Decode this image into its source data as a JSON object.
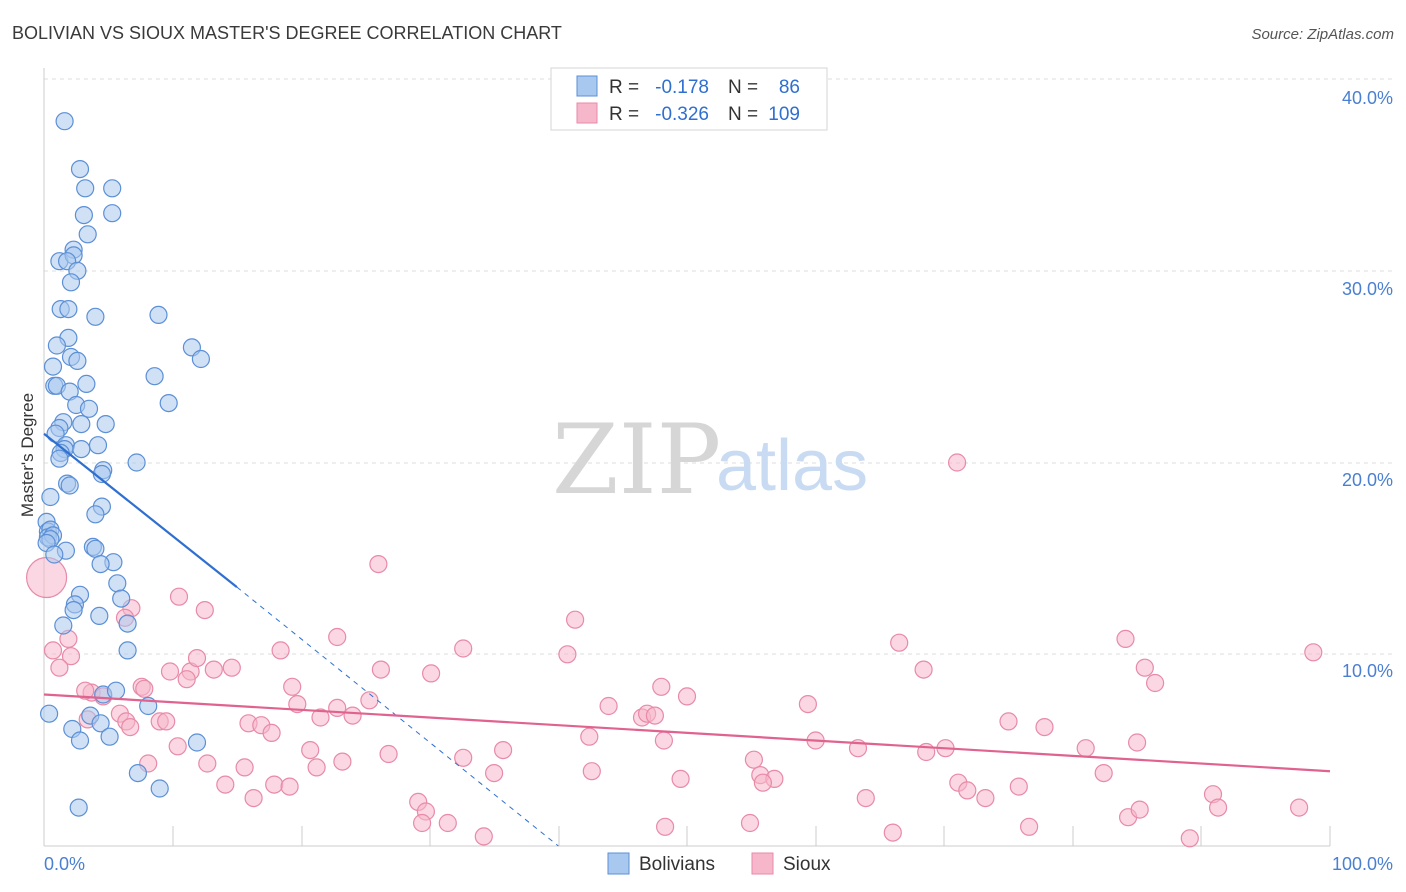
{
  "header": {
    "title": "BOLIVIAN VS SIOUX MASTER'S DEGREE CORRELATION CHART",
    "source": "Source: ZipAtlas.com"
  },
  "watermark": {
    "zip": "ZIP",
    "atlas": "atlas"
  },
  "colors": {
    "blue_fill": "#a9c8ef",
    "blue_stroke": "#5b8fd6",
    "blue_line": "#2f6fd0",
    "pink_fill": "#f6b7cb",
    "pink_stroke": "#e88aa8",
    "pink_line": "#e0628f",
    "grid": "#dddddd",
    "axis_text": "#4a7fd1"
  },
  "legend": {
    "rows": [
      {
        "r_label": "R =",
        "r_value": "-0.178",
        "n_label": "N =",
        "n_value": "86"
      },
      {
        "r_label": "R =",
        "r_value": "-0.326",
        "n_label": "N =",
        "n_value": "109"
      }
    ]
  },
  "bottom_legend": {
    "blue_label": "Bolivians",
    "pink_label": "Sioux"
  },
  "chart_data": {
    "type": "scatter",
    "title": "BOLIVIAN VS SIOUX MASTER'S DEGREE CORRELATION CHART",
    "xlabel": "",
    "ylabel": "Master's Degree",
    "xlim": [
      0,
      100
    ],
    "ylim": [
      0,
      40
    ],
    "x_tick_labels": [
      "0.0%",
      "100.0%"
    ],
    "y_ticks": [
      10,
      20,
      30,
      40
    ],
    "y_tick_labels": [
      "10.0%",
      "20.0%",
      "30.0%",
      "40.0%"
    ],
    "grid": true,
    "series": [
      {
        "name": "Bolivians",
        "R": -0.178,
        "N": 86,
        "trend": {
          "x1": 0,
          "y1": 21.5,
          "x2": 15,
          "y2": 13.5,
          "dashed_to_x": 40,
          "dashed_to_y": 0
        },
        "points": [
          [
            1.6,
            37.8
          ],
          [
            2.8,
            35.3
          ],
          [
            3.2,
            34.3
          ],
          [
            5.3,
            34.3
          ],
          [
            3.1,
            32.9
          ],
          [
            5.3,
            33.0
          ],
          [
            3.4,
            31.9
          ],
          [
            2.3,
            31.1
          ],
          [
            1.2,
            30.5
          ],
          [
            2.3,
            30.8
          ],
          [
            1.8,
            30.5
          ],
          [
            2.6,
            30.0
          ],
          [
            2.1,
            29.4
          ],
          [
            1.3,
            28.0
          ],
          [
            1.9,
            28.0
          ],
          [
            4.0,
            27.6
          ],
          [
            8.9,
            27.7
          ],
          [
            1.9,
            26.5
          ],
          [
            1.0,
            26.1
          ],
          [
            11.5,
            26.0
          ],
          [
            12.2,
            25.4
          ],
          [
            2.1,
            25.5
          ],
          [
            2.6,
            25.3
          ],
          [
            0.7,
            25.0
          ],
          [
            8.6,
            24.5
          ],
          [
            0.8,
            24.0
          ],
          [
            1.0,
            24.0
          ],
          [
            3.3,
            24.1
          ],
          [
            2.0,
            23.7
          ],
          [
            9.7,
            23.1
          ],
          [
            2.5,
            23.0
          ],
          [
            3.5,
            22.8
          ],
          [
            1.5,
            22.1
          ],
          [
            2.9,
            22.0
          ],
          [
            4.8,
            22.0
          ],
          [
            1.2,
            21.8
          ],
          [
            0.9,
            21.5
          ],
          [
            1.7,
            20.9
          ],
          [
            4.2,
            20.9
          ],
          [
            1.6,
            20.7
          ],
          [
            1.3,
            20.5
          ],
          [
            2.9,
            20.7
          ],
          [
            1.2,
            20.2
          ],
          [
            7.2,
            20.0
          ],
          [
            4.6,
            19.6
          ],
          [
            4.5,
            19.4
          ],
          [
            1.8,
            18.9
          ],
          [
            2.0,
            18.8
          ],
          [
            0.5,
            18.2
          ],
          [
            4.5,
            17.7
          ],
          [
            4.0,
            17.3
          ],
          [
            0.2,
            16.9
          ],
          [
            0.3,
            16.4
          ],
          [
            0.5,
            16.5
          ],
          [
            0.3,
            16.1
          ],
          [
            0.7,
            16.2
          ],
          [
            0.5,
            16.0
          ],
          [
            0.2,
            15.8
          ],
          [
            3.8,
            15.6
          ],
          [
            4.0,
            15.5
          ],
          [
            1.7,
            15.4
          ],
          [
            0.8,
            15.2
          ],
          [
            5.4,
            14.8
          ],
          [
            4.4,
            14.7
          ],
          [
            5.7,
            13.7
          ],
          [
            2.8,
            13.1
          ],
          [
            6.0,
            12.9
          ],
          [
            2.4,
            12.6
          ],
          [
            2.3,
            12.3
          ],
          [
            4.3,
            12.0
          ],
          [
            1.5,
            11.5
          ],
          [
            6.5,
            11.6
          ],
          [
            6.5,
            10.2
          ],
          [
            4.6,
            7.9
          ],
          [
            8.1,
            7.3
          ],
          [
            3.6,
            6.8
          ],
          [
            2.2,
            6.1
          ],
          [
            4.4,
            6.4
          ],
          [
            5.1,
            5.7
          ],
          [
            2.8,
            5.5
          ],
          [
            11.9,
            5.4
          ],
          [
            7.3,
            3.8
          ],
          [
            9.0,
            3.0
          ],
          [
            2.7,
            2.0
          ],
          [
            0.4,
            6.9
          ],
          [
            5.6,
            8.1
          ]
        ]
      },
      {
        "name": "Sioux",
        "R": -0.326,
        "N": 109,
        "trend": {
          "x1": 0,
          "y1": 7.9,
          "x2": 100,
          "y2": 3.9
        },
        "points": [
          [
            0.2,
            14.0
          ],
          [
            1.9,
            10.8
          ],
          [
            0.7,
            10.2
          ],
          [
            2.1,
            9.9
          ],
          [
            1.2,
            9.3
          ],
          [
            3.7,
            8.0
          ],
          [
            3.2,
            8.1
          ],
          [
            4.6,
            7.8
          ],
          [
            7.6,
            8.3
          ],
          [
            7.8,
            8.2
          ],
          [
            5.9,
            6.9
          ],
          [
            3.4,
            6.6
          ],
          [
            6.4,
            6.5
          ],
          [
            6.7,
            6.2
          ],
          [
            9.0,
            6.5
          ],
          [
            9.5,
            6.5
          ],
          [
            10.4,
            5.2
          ],
          [
            8.1,
            4.3
          ],
          [
            12.7,
            4.3
          ],
          [
            14.1,
            3.2
          ],
          [
            15.6,
            4.1
          ],
          [
            16.3,
            2.5
          ],
          [
            17.9,
            3.2
          ],
          [
            19.1,
            3.1
          ],
          [
            10.5,
            13.0
          ],
          [
            12.5,
            12.3
          ],
          [
            6.8,
            12.4
          ],
          [
            6.3,
            11.9
          ],
          [
            9.8,
            9.1
          ],
          [
            11.4,
            9.1
          ],
          [
            11.9,
            9.8
          ],
          [
            13.2,
            9.2
          ],
          [
            14.6,
            9.3
          ],
          [
            15.9,
            6.4
          ],
          [
            16.9,
            6.3
          ],
          [
            17.7,
            5.9
          ],
          [
            11.1,
            8.7
          ],
          [
            18.4,
            10.2
          ],
          [
            19.3,
            8.3
          ],
          [
            19.7,
            7.4
          ],
          [
            21.5,
            6.7
          ],
          [
            22.8,
            7.2
          ],
          [
            25.3,
            7.6
          ],
          [
            24.0,
            6.8
          ],
          [
            20.7,
            5.0
          ],
          [
            21.2,
            4.1
          ],
          [
            23.2,
            4.4
          ],
          [
            26.8,
            4.8
          ],
          [
            29.1,
            2.3
          ],
          [
            29.7,
            1.8
          ],
          [
            29.4,
            1.2
          ],
          [
            31.4,
            1.2
          ],
          [
            30.1,
            9.0
          ],
          [
            26.2,
            9.2
          ],
          [
            22.8,
            10.9
          ],
          [
            26.0,
            14.7
          ],
          [
            32.6,
            4.6
          ],
          [
            34.2,
            0.5
          ],
          [
            35.0,
            3.8
          ],
          [
            35.7,
            5.0
          ],
          [
            32.6,
            10.3
          ],
          [
            40.7,
            10.0
          ],
          [
            41.3,
            11.8
          ],
          [
            42.6,
            3.9
          ],
          [
            42.4,
            5.7
          ],
          [
            43.9,
            7.3
          ],
          [
            46.5,
            6.7
          ],
          [
            46.9,
            6.9
          ],
          [
            47.5,
            6.8
          ],
          [
            48.2,
            5.5
          ],
          [
            48.3,
            1.0
          ],
          [
            48.0,
            8.3
          ],
          [
            50.0,
            7.8
          ],
          [
            54.9,
            1.2
          ],
          [
            49.5,
            3.5
          ],
          [
            55.2,
            4.5
          ],
          [
            55.7,
            3.7
          ],
          [
            56.8,
            3.5
          ],
          [
            55.9,
            3.3
          ],
          [
            59.4,
            7.4
          ],
          [
            60.0,
            5.5
          ],
          [
            63.3,
            5.1
          ],
          [
            63.9,
            2.5
          ],
          [
            66.0,
            0.7
          ],
          [
            68.6,
            4.9
          ],
          [
            70.1,
            5.1
          ],
          [
            66.5,
            10.6
          ],
          [
            68.4,
            9.2
          ],
          [
            71.1,
            3.3
          ],
          [
            71.8,
            2.9
          ],
          [
            73.2,
            2.5
          ],
          [
            75.0,
            6.5
          ],
          [
            75.8,
            3.1
          ],
          [
            76.6,
            1.0
          ],
          [
            77.8,
            6.2
          ],
          [
            84.1,
            10.8
          ],
          [
            85.6,
            9.3
          ],
          [
            86.4,
            8.5
          ],
          [
            81.0,
            5.1
          ],
          [
            82.4,
            3.8
          ],
          [
            85.0,
            5.4
          ],
          [
            84.3,
            1.5
          ],
          [
            85.2,
            1.9
          ],
          [
            89.1,
            0.4
          ],
          [
            90.9,
            2.7
          ],
          [
            91.3,
            2.0
          ],
          [
            97.6,
            2.0
          ],
          [
            98.7,
            10.1
          ],
          [
            71.0,
            20.0
          ]
        ]
      }
    ]
  }
}
